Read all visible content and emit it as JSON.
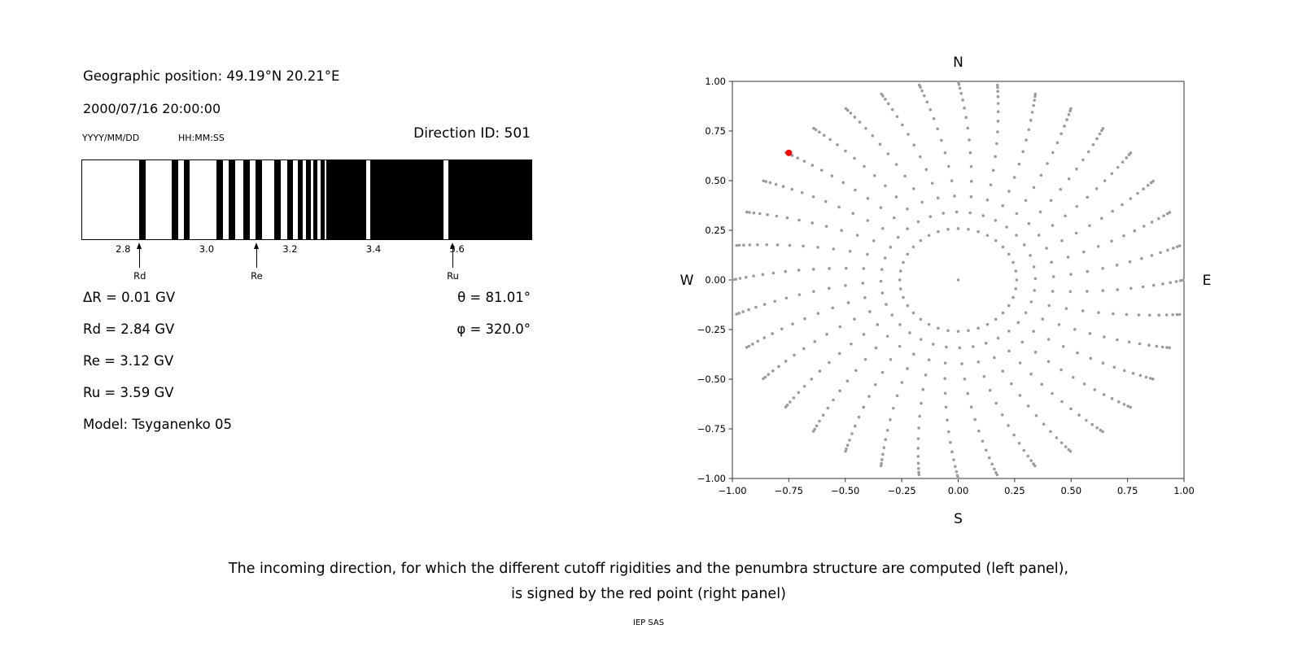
{
  "page": {
    "background": "#ffffff",
    "caption_line1": "The incoming direction, for which the different cutoff rigidities and the penumbra structure are computed (left panel),",
    "caption_line2": "is signed by the red point (right panel)",
    "credit": "IEP SAS"
  },
  "left_panel": {
    "geo_position": "Geographic position: 49.19°N 20.21°E",
    "datetime": "2000/07/16 20:00:00",
    "date_format_label": "YYYY/MM/DD",
    "time_format_label": "HH:MM:SS",
    "direction_id": "Direction ID: 501",
    "info_lines": [
      "ΔR = 0.01 GV",
      "Rd = 2.84 GV",
      "Re = 3.12 GV",
      "Ru = 3.59 GV",
      "Model: Tsyganenko 05"
    ],
    "theta": "θ = 81.01°",
    "phi": "φ = 320.0°"
  },
  "chart_data": [
    {
      "type": "bar",
      "name": "penumbra-structure",
      "x_range": [
        2.7,
        3.78
      ],
      "ticks": [
        2.8,
        3.0,
        3.2,
        3.4,
        3.6
      ],
      "bar_color": "#000000",
      "bars_gv": [
        [
          2.837,
          2.852
        ],
        [
          2.915,
          2.93
        ],
        [
          2.944,
          2.959
        ],
        [
          3.023,
          3.039
        ],
        [
          3.052,
          3.068
        ],
        [
          3.087,
          3.103
        ],
        [
          3.117,
          3.132
        ],
        [
          3.161,
          3.177
        ],
        [
          3.194,
          3.206
        ],
        [
          3.219,
          3.231
        ],
        [
          3.239,
          3.249
        ],
        [
          3.256,
          3.266
        ],
        [
          3.274,
          3.283
        ],
        [
          3.287,
          3.383
        ],
        [
          3.392,
          3.569
        ],
        [
          3.58,
          3.78
        ]
      ],
      "markers": [
        {
          "label": "Rd",
          "value": 2.84
        },
        {
          "label": "Re",
          "value": 3.12
        },
        {
          "label": "Ru",
          "value": 3.59
        }
      ]
    },
    {
      "type": "scatter",
      "name": "incoming-directions",
      "xlim": [
        -1,
        1
      ],
      "ylim": [
        -1,
        1
      ],
      "ticks": [
        -1.0,
        -0.75,
        -0.5,
        -0.25,
        0.0,
        0.25,
        0.5,
        0.75,
        1.0
      ],
      "compass": {
        "north": "N",
        "south": "S",
        "east": "E",
        "west": "W"
      },
      "frame_color": "#333333",
      "point_color": "#9b9b9b",
      "red_point_color": "#ff0000",
      "grid": {
        "azimuth_start_deg": 0,
        "azimuth_step_deg": 10,
        "azimuth_count": 36,
        "zenith_deg": [
          15,
          20,
          25,
          30,
          35,
          40,
          45,
          50,
          55,
          60,
          65,
          70,
          75,
          80,
          85
        ],
        "bend_deg": 10,
        "bend_start_r": 0.259,
        "center_point": true
      },
      "red_point": {
        "x": -0.75,
        "y": 0.64,
        "theta_deg": 81.01,
        "phi_deg": 320.0
      }
    }
  ]
}
